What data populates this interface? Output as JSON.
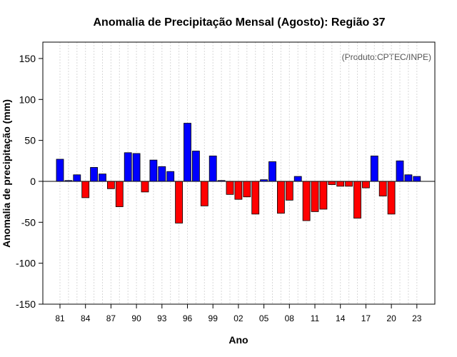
{
  "chart_data": {
    "type": "bar",
    "title": "Anomalia de Precipitação Mensal (Agosto): Região 37",
    "watermark": "(Produto:CPTEC/INPE)",
    "xlabel": "Ano",
    "ylabel": "Anomalia de precipitação (mm)",
    "ylim": [
      -150,
      170
    ],
    "yticks": [
      -150,
      -100,
      -50,
      0,
      50,
      100,
      150
    ],
    "xtick_labels": [
      "81",
      "84",
      "87",
      "90",
      "93",
      "96",
      "99",
      "02",
      "05",
      "08",
      "11",
      "14",
      "17",
      "20",
      "23"
    ],
    "categories": [
      "1981",
      "1982",
      "1983",
      "1984",
      "1985",
      "1986",
      "1987",
      "1988",
      "1989",
      "1990",
      "1991",
      "1992",
      "1993",
      "1994",
      "1995",
      "1996",
      "1997",
      "1998",
      "1999",
      "2000",
      "2001",
      "2002",
      "2003",
      "2004",
      "2005",
      "2006",
      "2007",
      "2008",
      "2009",
      "2010",
      "2011",
      "2012",
      "2013",
      "2014",
      "2015",
      "2016",
      "2017",
      "2018",
      "2019",
      "2020",
      "2021",
      "2022",
      "2023"
    ],
    "values": [
      27,
      1,
      8,
      -20,
      17,
      9,
      -9,
      -31,
      35,
      34,
      -13,
      26,
      18,
      12,
      -51,
      71,
      37,
      -30,
      31,
      1,
      -16,
      -22,
      -19,
      -40,
      2,
      24,
      -39,
      -23,
      6,
      -48,
      -37,
      -34,
      -4,
      -6,
      -6,
      -45,
      -8,
      31,
      -18,
      -40,
      25,
      8,
      6
    ],
    "colors": {
      "positive": "#0000ff",
      "negative": "#ff0000",
      "grid": "#d8d8d8"
    }
  }
}
